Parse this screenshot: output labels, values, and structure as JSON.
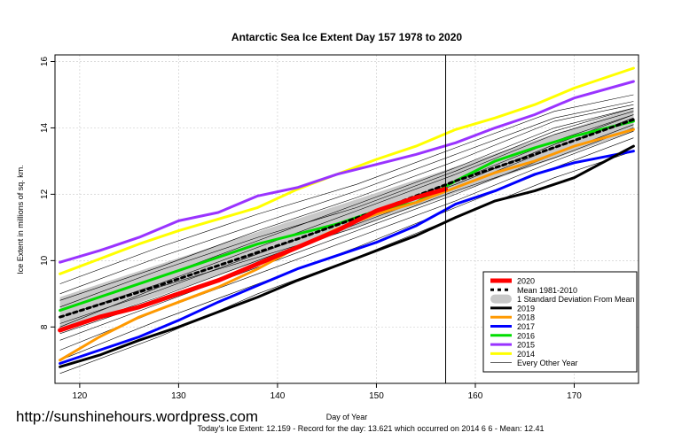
{
  "watermark": "http://sunshinehours.wordpress.com",
  "footer": "Today's Ice Extent: 12.159  - Record for the day: 13.621 which occurred on 2014 6 6  - Mean: 12.41",
  "chart_data": {
    "type": "line",
    "title": "Antarctic Sea Ice Extent Day 157 1978 to 2020",
    "xlabel": "Day of Year",
    "ylabel": "Ice Extent in millions of sq. km.",
    "xlim": [
      117.5,
      176.5
    ],
    "ylim": [
      6.3,
      16.2
    ],
    "xticks": [
      120,
      130,
      140,
      150,
      160,
      170
    ],
    "yticks": [
      8,
      10,
      12,
      14,
      16
    ],
    "grid": true,
    "vline_day": 157,
    "legend_position": "bottom-right",
    "sd_band": {
      "name": "1 Standard Deviation From Mean",
      "color": "#c8c8c8",
      "x": [
        118,
        176
      ],
      "lower": [
        7.9,
        13.9
      ],
      "upper": [
        8.9,
        14.6
      ]
    },
    "series": [
      {
        "name": "2020",
        "color": "#ff0000",
        "width": 5,
        "x": [
          118,
          122,
          126,
          130,
          134,
          138,
          142,
          146,
          150,
          154,
          157
        ],
        "y": [
          7.9,
          8.3,
          8.6,
          9.0,
          9.4,
          9.9,
          10.4,
          10.9,
          11.5,
          11.9,
          12.16
        ]
      },
      {
        "name": "Mean 1981-2010",
        "color": "#000000",
        "width": 3,
        "dash": "4,4",
        "x": [
          118,
          126,
          134,
          142,
          150,
          158,
          166,
          176
        ],
        "y": [
          8.3,
          9.05,
          9.85,
          10.65,
          11.5,
          12.4,
          13.2,
          14.25
        ]
      },
      {
        "name": "2019",
        "color": "#000000",
        "width": 3,
        "x": [
          118,
          122,
          126,
          130,
          134,
          138,
          142,
          146,
          150,
          154,
          158,
          162,
          166,
          170,
          176
        ],
        "y": [
          6.8,
          7.15,
          7.6,
          8.0,
          8.45,
          8.9,
          9.4,
          9.85,
          10.3,
          10.75,
          11.3,
          11.8,
          12.1,
          12.5,
          13.45
        ]
      },
      {
        "name": "2018",
        "color": "#ff9900",
        "width": 3,
        "x": [
          118,
          122,
          126,
          130,
          134,
          138,
          142,
          146,
          150,
          154,
          158,
          162,
          166,
          170,
          176
        ],
        "y": [
          7.0,
          7.7,
          8.3,
          8.75,
          9.2,
          9.75,
          10.4,
          10.95,
          11.4,
          11.75,
          12.2,
          12.65,
          13.0,
          13.45,
          13.95
        ]
      },
      {
        "name": "2017",
        "color": "#0000ff",
        "width": 3,
        "x": [
          118,
          122,
          126,
          130,
          134,
          138,
          142,
          146,
          150,
          154,
          158,
          162,
          166,
          170,
          176
        ],
        "y": [
          6.9,
          7.3,
          7.7,
          8.2,
          8.75,
          9.25,
          9.75,
          10.15,
          10.55,
          11.05,
          11.7,
          12.1,
          12.6,
          12.95,
          13.3
        ]
      },
      {
        "name": "2016",
        "color": "#00dd00",
        "width": 3,
        "x": [
          118,
          122,
          126,
          130,
          134,
          138,
          142,
          146,
          150,
          154,
          158,
          162,
          166,
          170,
          176
        ],
        "y": [
          8.5,
          8.9,
          9.3,
          9.7,
          10.1,
          10.5,
          10.8,
          11.1,
          11.5,
          11.75,
          12.4,
          13.0,
          13.4,
          13.75,
          14.2
        ]
      },
      {
        "name": "2015",
        "color": "#9933ff",
        "width": 3,
        "x": [
          118,
          122,
          126,
          130,
          134,
          138,
          142,
          146,
          150,
          154,
          158,
          162,
          166,
          170,
          176
        ],
        "y": [
          9.95,
          10.3,
          10.7,
          11.2,
          11.45,
          11.95,
          12.2,
          12.6,
          12.9,
          13.2,
          13.55,
          14.0,
          14.4,
          14.9,
          15.4
        ]
      },
      {
        "name": "2014",
        "color": "#ffff00",
        "width": 3,
        "x": [
          118,
          122,
          126,
          130,
          134,
          138,
          142,
          146,
          150,
          154,
          158,
          162,
          166,
          170,
          176
        ],
        "y": [
          9.6,
          10.05,
          10.5,
          10.9,
          11.25,
          11.6,
          12.15,
          12.6,
          13.05,
          13.45,
          13.95,
          14.3,
          14.7,
          15.2,
          15.8
        ]
      }
    ],
    "thin_line_label": "Every Other Year",
    "thin_lines": [
      {
        "x": [
          118,
          128,
          138,
          148,
          158,
          168,
          176
        ],
        "y": [
          6.6,
          7.7,
          9.0,
          10.1,
          11.3,
          12.5,
          13.3
        ]
      },
      {
        "x": [
          118,
          128,
          138,
          148,
          158,
          168,
          176
        ],
        "y": [
          7.0,
          8.2,
          9.3,
          10.4,
          11.6,
          12.8,
          13.7
        ]
      },
      {
        "x": [
          118,
          128,
          138,
          148,
          158,
          168,
          176
        ],
        "y": [
          7.3,
          8.5,
          9.6,
          10.7,
          11.8,
          13.0,
          13.9
        ]
      },
      {
        "x": [
          118,
          128,
          138,
          148,
          158,
          168,
          176
        ],
        "y": [
          7.6,
          8.7,
          9.8,
          10.9,
          12.0,
          13.2,
          14.1
        ]
      },
      {
        "x": [
          118,
          128,
          138,
          148,
          158,
          168,
          176
        ],
        "y": [
          7.9,
          8.9,
          10.0,
          11.1,
          12.2,
          13.4,
          14.3
        ]
      },
      {
        "x": [
          118,
          128,
          138,
          148,
          158,
          168,
          176
        ],
        "y": [
          8.1,
          9.1,
          10.2,
          11.3,
          12.4,
          13.6,
          14.4
        ]
      },
      {
        "x": [
          118,
          128,
          138,
          148,
          158,
          168,
          176
        ],
        "y": [
          8.3,
          9.3,
          10.4,
          11.5,
          12.6,
          13.8,
          14.5
        ]
      },
      {
        "x": [
          118,
          128,
          138,
          148,
          158,
          168,
          176
        ],
        "y": [
          8.5,
          9.5,
          10.6,
          11.7,
          12.8,
          14.0,
          14.6
        ]
      },
      {
        "x": [
          118,
          128,
          138,
          148,
          158,
          168,
          176
        ],
        "y": [
          8.8,
          9.8,
          10.9,
          11.9,
          13.0,
          14.2,
          14.7
        ]
      },
      {
        "x": [
          118,
          128,
          138,
          148,
          158,
          168,
          176
        ],
        "y": [
          9.0,
          10.1,
          11.1,
          12.1,
          13.2,
          14.3,
          14.8
        ]
      },
      {
        "x": [
          118,
          128,
          138,
          148,
          158,
          168,
          176
        ],
        "y": [
          9.3,
          10.4,
          11.4,
          12.3,
          13.4,
          14.5,
          15.0
        ]
      },
      {
        "x": [
          118,
          128,
          138,
          148,
          158,
          168,
          176
        ],
        "y": [
          8.0,
          9.2,
          10.1,
          11.0,
          12.1,
          13.1,
          14.0
        ]
      },
      {
        "x": [
          118,
          128,
          138,
          148,
          158,
          168,
          176
        ],
        "y": [
          7.8,
          8.8,
          9.9,
          11.2,
          12.3,
          13.5,
          14.4
        ]
      },
      {
        "x": [
          118,
          128,
          138,
          148,
          158,
          168,
          176
        ],
        "y": [
          8.6,
          9.7,
          10.7,
          11.6,
          12.7,
          13.9,
          14.6
        ]
      }
    ]
  }
}
